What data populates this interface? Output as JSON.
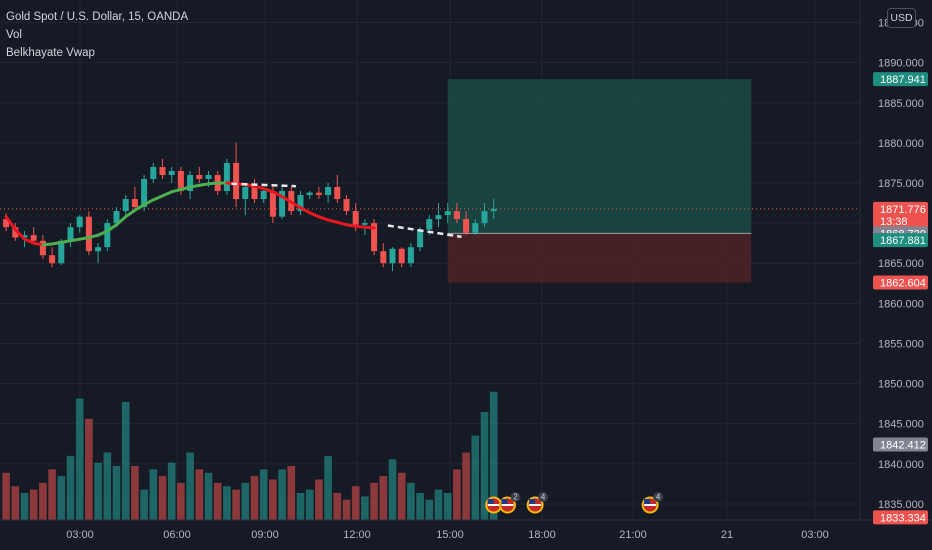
{
  "legend": {
    "symbol": "Gold Spot / U.S. Dollar, 15, OANDA",
    "indicator1": "Vol",
    "indicator2": "Belkhayate Vwap"
  },
  "currency_button": "USD",
  "colors": {
    "background": "#161a25",
    "grid": "#222632",
    "up": "#26a69a",
    "down": "#ef5350",
    "vwap_up": "#4caf50",
    "vwap_down": "#e8171f",
    "target_zone": "#1b4b45",
    "stop_zone": "#4a2226",
    "axis_text": "#b2b5be"
  },
  "price_axis": {
    "min": 1833,
    "max": 1896,
    "ticks": [
      "1835.000",
      "1840.000",
      "1845.000",
      "1850.000",
      "1855.000",
      "1860.000",
      "1865.000",
      "1870.000",
      "1875.000",
      "1880.000",
      "1885.000",
      "1890.000",
      "1895.000"
    ]
  },
  "time_axis": {
    "labels": [
      "03:00",
      "06:00",
      "09:00",
      "12:00",
      "15:00",
      "18:00",
      "21:00",
      "21",
      "03:00"
    ]
  },
  "price_labels": [
    {
      "value": 1887.941,
      "text": "1887.941",
      "color": "#1e8c7e"
    },
    {
      "value": 1871.776,
      "text": "1871.776",
      "sub": "13:38",
      "color": "#ef5350"
    },
    {
      "value": 1868.72,
      "text": "1868.720",
      "color": "#808591"
    },
    {
      "value": 1867.881,
      "text": "1867.881",
      "color": "#1e8c7e"
    },
    {
      "value": 1862.604,
      "text": "1862.604",
      "color": "#ef5350"
    },
    {
      "value": 1842.412,
      "text": "1842.412",
      "color": "#808591"
    },
    {
      "value": 1833.334,
      "text": "1833.334",
      "color": "#ef5350"
    }
  ],
  "position_tool": {
    "entry": 1868.72,
    "target": 1887.941,
    "stop": 1862.604,
    "start_bar": 48.5,
    "end_bar": 81.5
  },
  "event_markers": [
    {
      "bar": 53.5,
      "count": ""
    },
    {
      "bar": 55,
      "count": "2"
    },
    {
      "bar": 58,
      "count": "4"
    },
    {
      "bar": 70.5,
      "count": "4"
    }
  ],
  "chart_data": {
    "type": "candlestick",
    "interval": "15",
    "candles": [
      [
        1870.5,
        1871.2,
        1869.0,
        1869.5
      ],
      [
        1869.5,
        1870.0,
        1867.8,
        1868.2
      ],
      [
        1868.2,
        1869.0,
        1867.0,
        1868.5
      ],
      [
        1868.5,
        1869.5,
        1867.5,
        1867.8
      ],
      [
        1867.8,
        1868.5,
        1865.5,
        1866.0
      ],
      [
        1866.0,
        1867.0,
        1864.5,
        1865.0
      ],
      [
        1865.0,
        1868.0,
        1864.8,
        1867.8
      ],
      [
        1867.8,
        1870.0,
        1867.0,
        1869.5
      ],
      [
        1869.5,
        1871.0,
        1868.8,
        1870.8
      ],
      [
        1870.8,
        1871.5,
        1866.0,
        1866.5
      ],
      [
        1866.5,
        1867.5,
        1865.0,
        1867.0
      ],
      [
        1867.0,
        1870.5,
        1866.5,
        1870.0
      ],
      [
        1870.0,
        1872.0,
        1869.5,
        1871.5
      ],
      [
        1871.5,
        1873.5,
        1871.0,
        1873.0
      ],
      [
        1873.0,
        1874.5,
        1871.5,
        1872.0
      ],
      [
        1872.0,
        1876.0,
        1871.5,
        1875.5
      ],
      [
        1875.5,
        1877.5,
        1875.0,
        1877.0
      ],
      [
        1877.0,
        1878.0,
        1875.5,
        1876.0
      ],
      [
        1876.0,
        1877.0,
        1875.0,
        1876.5
      ],
      [
        1876.5,
        1877.0,
        1873.5,
        1874.0
      ],
      [
        1874.0,
        1876.5,
        1873.0,
        1876.0
      ],
      [
        1876.0,
        1877.0,
        1875.0,
        1875.5
      ],
      [
        1875.5,
        1876.5,
        1874.5,
        1876.0
      ],
      [
        1876.0,
        1876.5,
        1873.5,
        1874.0
      ],
      [
        1874.0,
        1878.0,
        1873.5,
        1877.5
      ],
      [
        1877.5,
        1880.0,
        1872.0,
        1873.0
      ],
      [
        1873.0,
        1875.0,
        1871.0,
        1874.5
      ],
      [
        1874.5,
        1875.5,
        1872.5,
        1873.0
      ],
      [
        1873.0,
        1874.5,
        1872.5,
        1874.0
      ],
      [
        1874.0,
        1874.5,
        1870.0,
        1870.8
      ],
      [
        1870.8,
        1874.5,
        1870.5,
        1874.0
      ],
      [
        1874.0,
        1874.5,
        1871.0,
        1871.5
      ],
      [
        1871.5,
        1874.0,
        1871.0,
        1873.5
      ],
      [
        1873.5,
        1874.0,
        1873.0,
        1873.8
      ],
      [
        1873.8,
        1874.5,
        1873.0,
        1873.5
      ],
      [
        1873.5,
        1875.0,
        1872.5,
        1874.5
      ],
      [
        1874.5,
        1876.0,
        1872.5,
        1873.0
      ],
      [
        1873.0,
        1873.5,
        1871.0,
        1871.5
      ],
      [
        1871.5,
        1872.5,
        1869.0,
        1869.8
      ],
      [
        1869.8,
        1870.5,
        1868.5,
        1870.0
      ],
      [
        1870.0,
        1870.5,
        1866.0,
        1866.5
      ],
      [
        1866.5,
        1867.5,
        1864.5,
        1865.0
      ],
      [
        1865.0,
        1867.0,
        1864.0,
        1866.8
      ],
      [
        1866.8,
        1867.0,
        1864.5,
        1865.0
      ],
      [
        1865.0,
        1867.5,
        1864.5,
        1867.0
      ],
      [
        1867.0,
        1869.5,
        1866.5,
        1869.2
      ],
      [
        1869.2,
        1871.0,
        1868.5,
        1870.5
      ],
      [
        1870.5,
        1872.5,
        1869.5,
        1871.0
      ],
      [
        1871.0,
        1872.5,
        1870.0,
        1871.5
      ],
      [
        1871.5,
        1872.5,
        1870.0,
        1870.5
      ],
      [
        1870.5,
        1871.5,
        1868.5,
        1868.8
      ],
      [
        1868.8,
        1870.5,
        1868.5,
        1870.0
      ],
      [
        1870.0,
        1872.5,
        1869.5,
        1871.5
      ],
      [
        1871.5,
        1873.0,
        1870.5,
        1871.776
      ]
    ],
    "volume": [
      28,
      20,
      16,
      18,
      22,
      30,
      26,
      38,
      72,
      60,
      34,
      40,
      32,
      70,
      32,
      18,
      30,
      26,
      34,
      22,
      40,
      30,
      28,
      22,
      20,
      18,
      22,
      26,
      30,
      24,
      30,
      32,
      16,
      18,
      24,
      38,
      16,
      12,
      20,
      14,
      22,
      26,
      36,
      28,
      22,
      16,
      12,
      18,
      16,
      30,
      40,
      50,
      64,
      76
    ],
    "vwap": [
      1870.8,
      1869.2,
      1868.0,
      1867.5,
      1867.3,
      1867.4,
      1867.6,
      1867.8,
      1868.0,
      1868.2,
      1868.5,
      1869.0,
      1869.8,
      1870.8,
      1871.6,
      1872.3,
      1872.9,
      1873.4,
      1873.9,
      1874.2,
      1874.5,
      1874.7,
      1874.9,
      1875.0,
      1875.0,
      1874.9,
      1874.8,
      1874.6,
      1874.3,
      1873.9,
      1873.3,
      1872.6,
      1871.9,
      1871.3,
      1870.8,
      1870.4,
      1870.1,
      1869.8,
      1869.6,
      1869.5,
      1869.4
    ]
  }
}
